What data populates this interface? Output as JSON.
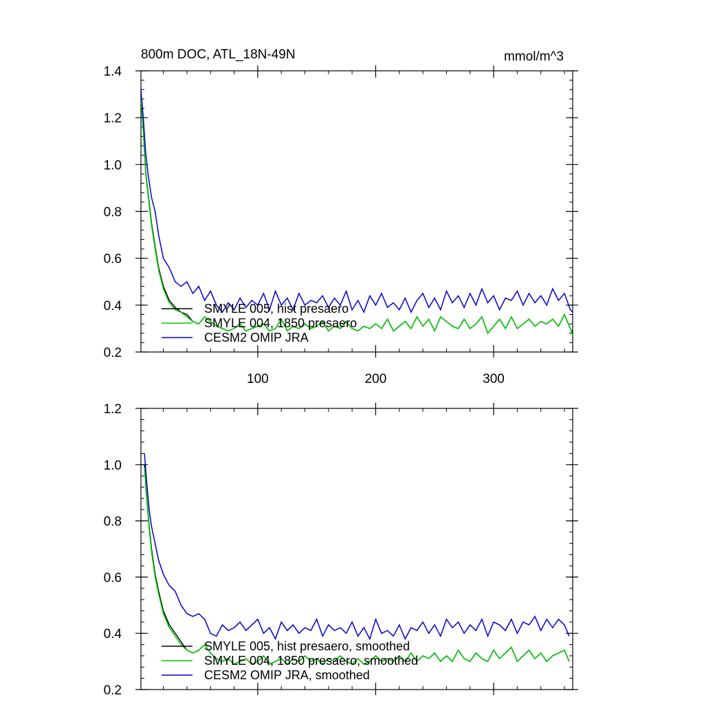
{
  "figure": {
    "title_left": "800m DOC, ATL_18N-49N",
    "title_right": "mmol/m^3"
  },
  "chart_data": [
    {
      "type": "line",
      "title": "800m DOC, ATL_18N-49N",
      "units": "mmol/m^3",
      "xlim": [
        1,
        367
      ],
      "ylim": [
        0.2,
        1.4
      ],
      "x_ticks": [
        100,
        200,
        300
      ],
      "y_ticks": [
        0.2,
        0.4,
        0.6,
        0.8,
        1.0,
        1.2,
        1.4
      ],
      "y_tick_labels": [
        "0.2",
        "0.4",
        "0.6",
        "0.8",
        "1.0",
        "1.2",
        "1.4"
      ],
      "legend_position": "bottom-left",
      "x": [
        1,
        3,
        5,
        7,
        10,
        13,
        16,
        20,
        25,
        30,
        35,
        40,
        45,
        50,
        55,
        60,
        65,
        70,
        75,
        80,
        85,
        90,
        95,
        100,
        105,
        110,
        115,
        120,
        125,
        130,
        135,
        140,
        145,
        150,
        155,
        160,
        165,
        170,
        175,
        180,
        185,
        190,
        195,
        200,
        205,
        210,
        215,
        220,
        225,
        230,
        235,
        240,
        245,
        250,
        255,
        260,
        265,
        270,
        275,
        280,
        285,
        290,
        295,
        300,
        305,
        310,
        315,
        320,
        325,
        330,
        335,
        340,
        345,
        350,
        355,
        360,
        365,
        367
      ],
      "series": [
        {
          "name": "SMYLE 005, hist presaero",
          "color": "#000000",
          "values": [
            1.29,
            1.15,
            0.97,
            0.88,
            0.75,
            0.65,
            0.56,
            0.48,
            0.42,
            0.39,
            0.37,
            0.36,
            0.33,
            0.32,
            0.35,
            0.33,
            0.31,
            0.3,
            0.29,
            0.3,
            0.32,
            0.29,
            0.3,
            0.31,
            0.32,
            0.29,
            0.3,
            0.34,
            0.29,
            0.31,
            0.3,
            0.32,
            0.3,
            0.31,
            0.33,
            0.29,
            0.31,
            0.3,
            0.33,
            0.3,
            0.29,
            0.31,
            0.3,
            0.32,
            0.3,
            0.34,
            0.29,
            0.31,
            0.33,
            0.3,
            0.35,
            0.31,
            0.34,
            0.29,
            0.35,
            0.33,
            0.31,
            0.3,
            0.34,
            0.3,
            0.32,
            0.35,
            0.28,
            0.31,
            0.34,
            0.3,
            0.35,
            0.3,
            0.32,
            0.34,
            0.31,
            0.33,
            0.32,
            0.34,
            0.31,
            0.36,
            0.3,
            0.28
          ]
        },
        {
          "name": "SMYLE 004, 1850 presaero",
          "color": "#00cc00",
          "values": [
            1.29,
            1.14,
            0.96,
            0.87,
            0.74,
            0.64,
            0.55,
            0.47,
            0.41,
            0.38,
            0.37,
            0.35,
            0.33,
            0.32,
            0.35,
            0.33,
            0.31,
            0.3,
            0.29,
            0.3,
            0.32,
            0.29,
            0.3,
            0.31,
            0.32,
            0.29,
            0.3,
            0.34,
            0.29,
            0.31,
            0.3,
            0.32,
            0.3,
            0.31,
            0.33,
            0.29,
            0.31,
            0.3,
            0.33,
            0.3,
            0.29,
            0.31,
            0.3,
            0.32,
            0.3,
            0.34,
            0.29,
            0.31,
            0.33,
            0.3,
            0.35,
            0.31,
            0.34,
            0.29,
            0.35,
            0.33,
            0.31,
            0.3,
            0.34,
            0.3,
            0.32,
            0.35,
            0.28,
            0.31,
            0.34,
            0.3,
            0.35,
            0.3,
            0.32,
            0.34,
            0.31,
            0.33,
            0.32,
            0.34,
            0.31,
            0.36,
            0.3,
            0.27
          ]
        },
        {
          "name": "CESM2 OMIP JRA",
          "color": "#0000cc",
          "values": [
            1.32,
            1.2,
            1.05,
            0.96,
            0.86,
            0.8,
            0.7,
            0.6,
            0.56,
            0.5,
            0.48,
            0.5,
            0.45,
            0.48,
            0.42,
            0.46,
            0.4,
            0.37,
            0.41,
            0.38,
            0.43,
            0.39,
            0.42,
            0.4,
            0.45,
            0.38,
            0.46,
            0.4,
            0.43,
            0.38,
            0.45,
            0.4,
            0.42,
            0.41,
            0.44,
            0.39,
            0.43,
            0.4,
            0.46,
            0.38,
            0.42,
            0.37,
            0.44,
            0.4,
            0.45,
            0.39,
            0.41,
            0.38,
            0.43,
            0.37,
            0.42,
            0.45,
            0.39,
            0.43,
            0.38,
            0.46,
            0.41,
            0.44,
            0.39,
            0.45,
            0.4,
            0.47,
            0.41,
            0.44,
            0.38,
            0.43,
            0.42,
            0.46,
            0.4,
            0.45,
            0.41,
            0.44,
            0.4,
            0.47,
            0.42,
            0.45,
            0.38,
            0.37
          ]
        }
      ]
    },
    {
      "type": "line",
      "xlim": [
        1,
        367
      ],
      "ylim": [
        0.2,
        1.2
      ],
      "x_ticks": [
        100,
        200,
        300
      ],
      "y_ticks": [
        0.2,
        0.4,
        0.6,
        0.8,
        1.0,
        1.2
      ],
      "y_tick_labels": [
        "0.2",
        "0.4",
        "0.6",
        "0.8",
        "1.0",
        "1.2"
      ],
      "legend_position": "bottom-left",
      "x": [
        4,
        6,
        8,
        10,
        13,
        16,
        20,
        25,
        30,
        35,
        40,
        45,
        50,
        55,
        60,
        65,
        70,
        75,
        80,
        85,
        90,
        95,
        100,
        105,
        110,
        115,
        120,
        125,
        130,
        135,
        140,
        145,
        150,
        155,
        160,
        165,
        170,
        175,
        180,
        185,
        190,
        195,
        200,
        205,
        210,
        215,
        220,
        225,
        230,
        235,
        240,
        245,
        250,
        255,
        260,
        265,
        270,
        275,
        280,
        285,
        290,
        295,
        300,
        305,
        310,
        315,
        320,
        325,
        330,
        335,
        340,
        345,
        350,
        355,
        360,
        364
      ],
      "series": [
        {
          "name": "SMYLE 005, hist presaero, smoothed",
          "color": "#000000",
          "values": [
            1.0,
            0.88,
            0.78,
            0.7,
            0.61,
            0.55,
            0.48,
            0.43,
            0.4,
            0.37,
            0.34,
            0.33,
            0.34,
            0.36,
            0.33,
            0.31,
            0.3,
            0.31,
            0.29,
            0.3,
            0.31,
            0.29,
            0.3,
            0.32,
            0.29,
            0.3,
            0.31,
            0.29,
            0.31,
            0.3,
            0.32,
            0.3,
            0.31,
            0.29,
            0.31,
            0.3,
            0.32,
            0.3,
            0.29,
            0.31,
            0.29,
            0.3,
            0.32,
            0.3,
            0.31,
            0.3,
            0.32,
            0.3,
            0.33,
            0.3,
            0.32,
            0.31,
            0.33,
            0.3,
            0.32,
            0.3,
            0.34,
            0.31,
            0.3,
            0.33,
            0.31,
            0.3,
            0.34,
            0.31,
            0.33,
            0.35,
            0.3,
            0.32,
            0.34,
            0.31,
            0.33,
            0.3,
            0.32,
            0.33,
            0.34,
            0.3
          ]
        },
        {
          "name": "SMYLE 004, 1850 presaero, smoothed",
          "color": "#00cc00",
          "values": [
            0.99,
            0.87,
            0.77,
            0.69,
            0.6,
            0.54,
            0.47,
            0.42,
            0.39,
            0.36,
            0.34,
            0.33,
            0.34,
            0.36,
            0.33,
            0.31,
            0.3,
            0.31,
            0.29,
            0.3,
            0.31,
            0.29,
            0.3,
            0.32,
            0.29,
            0.3,
            0.31,
            0.29,
            0.31,
            0.3,
            0.32,
            0.3,
            0.31,
            0.29,
            0.31,
            0.3,
            0.32,
            0.3,
            0.29,
            0.31,
            0.29,
            0.3,
            0.32,
            0.3,
            0.31,
            0.3,
            0.32,
            0.3,
            0.33,
            0.3,
            0.32,
            0.31,
            0.33,
            0.3,
            0.32,
            0.3,
            0.34,
            0.31,
            0.3,
            0.33,
            0.31,
            0.3,
            0.34,
            0.31,
            0.33,
            0.35,
            0.3,
            0.32,
            0.34,
            0.31,
            0.33,
            0.3,
            0.32,
            0.33,
            0.34,
            0.3
          ]
        },
        {
          "name": "CESM2 OMIP JRA, smoothed",
          "color": "#0000cc",
          "values": [
            1.04,
            0.93,
            0.84,
            0.78,
            0.72,
            0.66,
            0.61,
            0.57,
            0.55,
            0.5,
            0.47,
            0.46,
            0.47,
            0.45,
            0.4,
            0.39,
            0.43,
            0.41,
            0.42,
            0.44,
            0.41,
            0.43,
            0.45,
            0.4,
            0.42,
            0.38,
            0.44,
            0.41,
            0.43,
            0.4,
            0.42,
            0.41,
            0.45,
            0.39,
            0.43,
            0.41,
            0.42,
            0.4,
            0.44,
            0.39,
            0.42,
            0.38,
            0.45,
            0.4,
            0.41,
            0.39,
            0.43,
            0.38,
            0.42,
            0.41,
            0.44,
            0.4,
            0.43,
            0.39,
            0.45,
            0.42,
            0.44,
            0.4,
            0.43,
            0.41,
            0.45,
            0.39,
            0.44,
            0.43,
            0.41,
            0.45,
            0.4,
            0.44,
            0.43,
            0.46,
            0.41,
            0.45,
            0.42,
            0.45,
            0.43,
            0.39
          ]
        }
      ]
    }
  ]
}
